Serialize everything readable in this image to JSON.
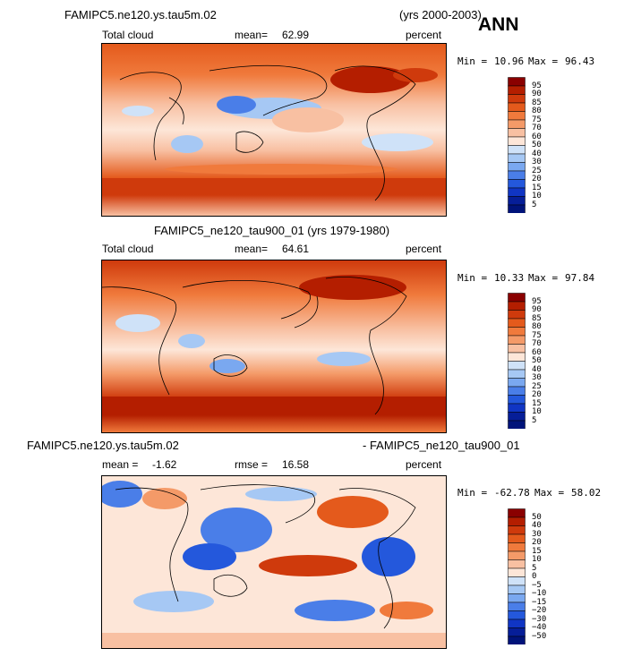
{
  "header": {
    "case1": "FAMIPC5.ne120.ys.tau5m.02",
    "case1_years": "(yrs 2000-2003)",
    "season": "ANN"
  },
  "chart_data": [
    {
      "type": "heatmap",
      "title": "FAMIPC5.ne120.ys.tau5m.02",
      "years": "(yrs 2000-2003)",
      "field": "Total cloud",
      "mean_label": "mean=",
      "mean": "62.99",
      "units": "percent",
      "min_label": "Min =",
      "min": "10.96",
      "max_label": "Max =",
      "max": "96.43",
      "colorbar": {
        "levels": [
          "95",
          "90",
          "85",
          "80",
          "75",
          "70",
          "60",
          "50",
          "40",
          "30",
          "25",
          "20",
          "15",
          "10",
          "5"
        ],
        "colors": [
          "#8a0000",
          "#b41e00",
          "#cf3a0c",
          "#e45a1c",
          "#f07a3c",
          "#f49a68",
          "#f8c0a2",
          "#fde6d8",
          "#cfe2f8",
          "#a6c8f4",
          "#7aa8f0",
          "#4a7ee8",
          "#2458dc",
          "#1035c4",
          "#061e98",
          "#00137a"
        ]
      }
    },
    {
      "type": "heatmap",
      "title": "FAMIPC5_ne120_tau900_01 (yrs 1979-1980)",
      "field": "Total cloud",
      "mean_label": "mean=",
      "mean": "64.61",
      "units": "percent",
      "min_label": "Min =",
      "min": "10.33",
      "max_label": "Max =",
      "max": "97.84",
      "colorbar": {
        "levels": [
          "95",
          "90",
          "85",
          "80",
          "75",
          "70",
          "60",
          "50",
          "40",
          "30",
          "25",
          "20",
          "15",
          "10",
          "5"
        ],
        "colors": [
          "#8a0000",
          "#b41e00",
          "#cf3a0c",
          "#e45a1c",
          "#f07a3c",
          "#f49a68",
          "#f8c0a2",
          "#fde6d8",
          "#cfe2f8",
          "#a6c8f4",
          "#7aa8f0",
          "#4a7ee8",
          "#2458dc",
          "#1035c4",
          "#061e98",
          "#00137a"
        ]
      }
    },
    {
      "type": "heatmap",
      "title_left": "FAMIPC5.ne120.ys.tau5m.02",
      "title_right": "- FAMIPC5_ne120_tau900_01",
      "mean_label": "mean =",
      "mean": "-1.62",
      "rmse_label": "rmse =",
      "rmse": "16.58",
      "units": "percent",
      "min_label": "Min =",
      "min": "-62.78",
      "max_label": "Max =",
      "max": "58.02",
      "colorbar": {
        "levels": [
          "50",
          "40",
          "30",
          "20",
          "15",
          "10",
          "5",
          "0",
          "−5",
          "−10",
          "−15",
          "−20",
          "−30",
          "−40",
          "−50"
        ],
        "colors": [
          "#8a0000",
          "#b41e00",
          "#cf3a0c",
          "#e45a1c",
          "#f07a3c",
          "#f49a68",
          "#f8c0a2",
          "#fde6d8",
          "#cfe2f8",
          "#a6c8f4",
          "#7aa8f0",
          "#4a7ee8",
          "#2458dc",
          "#1035c4",
          "#061e98",
          "#00137a"
        ]
      }
    }
  ]
}
